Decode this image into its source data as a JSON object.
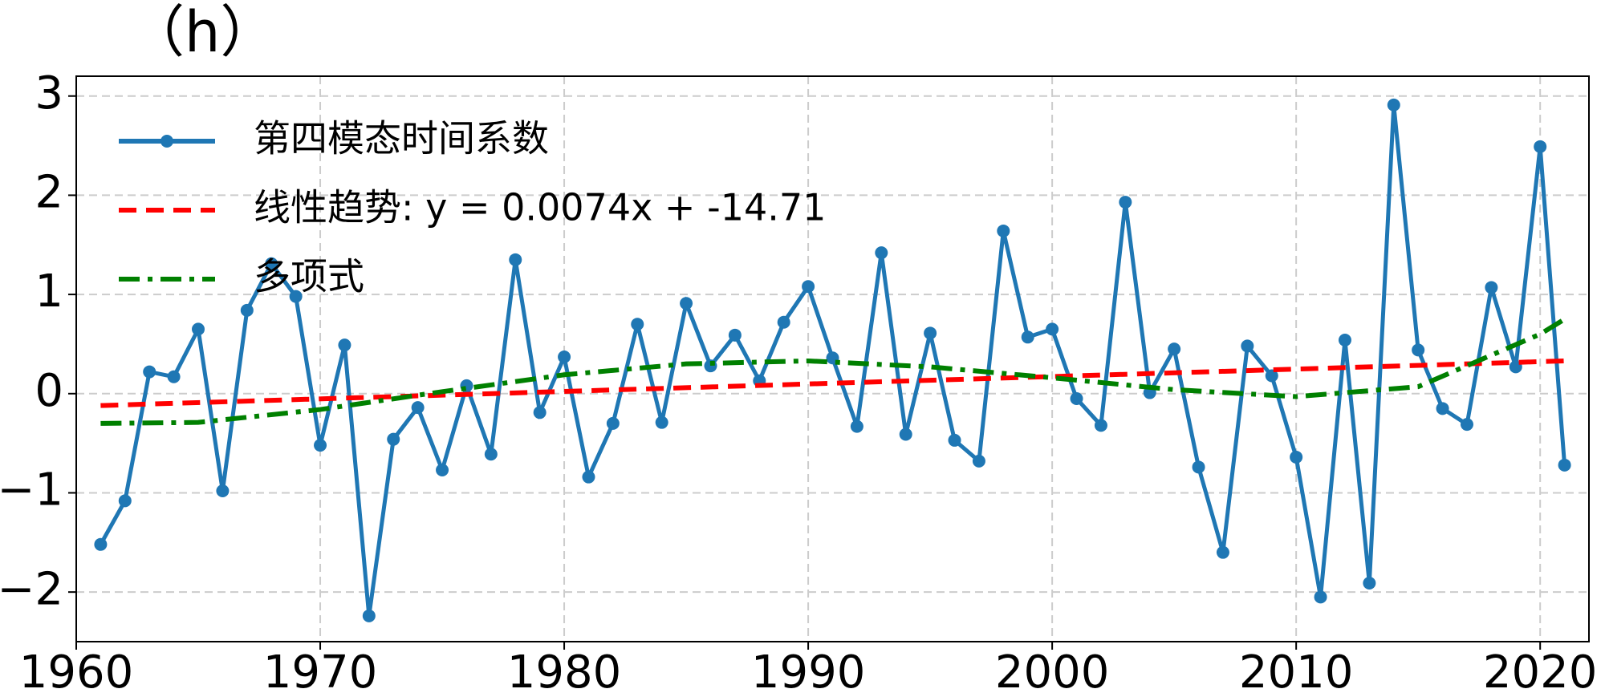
{
  "chart_data": {
    "type": "line",
    "title": "（h）",
    "xlim": [
      1960,
      2022
    ],
    "xticks": [
      1960,
      1970,
      1980,
      1990,
      2000,
      2010,
      2020
    ],
    "ylim": [
      -2.5,
      3.2
    ],
    "yticks": [
      {
        "value": -2,
        "label": "−2"
      },
      {
        "value": -1,
        "label": "−1"
      },
      0,
      1,
      2,
      3
    ],
    "grid": true,
    "legend": "upper left",
    "series": [
      {
        "name": "第四模态时间系数",
        "color": "#1f77b4",
        "style": "solid",
        "marker": true,
        "x": [
          1961,
          1962,
          1963,
          1964,
          1965,
          1966,
          1967,
          1968,
          1969,
          1970,
          1971,
          1972,
          1973,
          1974,
          1975,
          1976,
          1977,
          1978,
          1979,
          1980,
          1981,
          1982,
          1983,
          1984,
          1985,
          1986,
          1987,
          1988,
          1989,
          1990,
          1991,
          1992,
          1993,
          1994,
          1995,
          1996,
          1997,
          1998,
          1999,
          2000,
          2001,
          2002,
          2003,
          2004,
          2005,
          2006,
          2007,
          2008,
          2009,
          2010,
          2011,
          2012,
          2013,
          2014,
          2015,
          2016,
          2017,
          2018,
          2019,
          2020,
          2021
        ],
        "values": [
          -1.52,
          -1.08,
          0.22,
          0.17,
          0.65,
          -0.98,
          0.84,
          1.31,
          0.98,
          -0.52,
          0.49,
          -2.24,
          -0.46,
          -0.14,
          -0.77,
          0.08,
          -0.61,
          1.35,
          -0.19,
          0.37,
          -0.84,
          -0.3,
          0.7,
          -0.29,
          0.91,
          0.28,
          0.59,
          0.13,
          0.72,
          1.08,
          0.36,
          -0.33,
          1.42,
          -0.41,
          0.61,
          -0.47,
          -0.68,
          1.64,
          0.57,
          0.65,
          -0.05,
          -0.32,
          1.93,
          0.01,
          0.45,
          -0.74,
          -1.6,
          0.48,
          0.18,
          -0.64,
          -2.05,
          0.54,
          -1.91,
          2.91,
          0.44,
          -0.15,
          -0.31,
          1.07,
          0.27,
          2.49,
          -0.72
        ]
      },
      {
        "name": "线性趋势: y = 0.0074x + -14.71",
        "color": "#ff0000",
        "style": "dashed",
        "marker": false,
        "x": [
          1961,
          2021
        ],
        "values": [
          -0.12,
          0.33
        ]
      },
      {
        "name": "多项式",
        "color": "#008000",
        "style": "dashdot",
        "marker": false,
        "x": [
          1961,
          1965,
          1970,
          1975,
          1980,
          1985,
          1990,
          1995,
          2000,
          2005,
          2010,
          2015,
          2020,
          2021
        ],
        "values": [
          -0.3,
          -0.29,
          -0.16,
          0.02,
          0.19,
          0.3,
          0.33,
          0.27,
          0.16,
          0.04,
          -0.03,
          0.07,
          0.6,
          0.75
        ]
      }
    ]
  }
}
